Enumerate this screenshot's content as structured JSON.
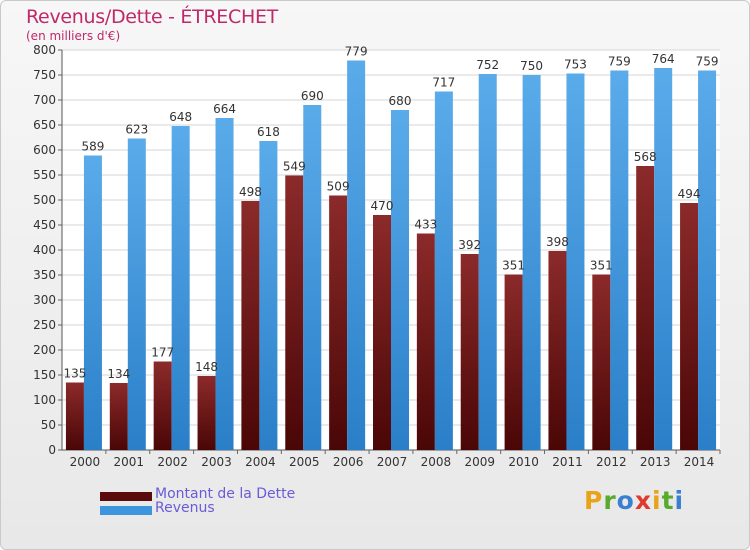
{
  "header": {
    "title": "Revenus/Dette - ÉTRECHET",
    "subtitle": "(en milliers d'€)"
  },
  "chart_data": {
    "type": "bar",
    "title": "Revenus/Dette - ÉTRECHET",
    "ylabel": "(en milliers d'€)",
    "xlabel": "",
    "ylim": [
      0,
      800
    ],
    "ytick_step": 50,
    "grid": true,
    "categories": [
      "2000",
      "2001",
      "2002",
      "2003",
      "2004",
      "2005",
      "2006",
      "2007",
      "2008",
      "2009",
      "2010",
      "2011",
      "2012",
      "2013",
      "2014"
    ],
    "series": [
      {
        "name": "Montant de la Dette",
        "color": "#7a1f1f",
        "values": [
          135,
          134,
          177,
          148,
          498,
          549,
          509,
          470,
          433,
          392,
          351,
          398,
          351,
          568,
          494
        ]
      },
      {
        "name": "Revenus",
        "color": "#3d95dd",
        "values": [
          589,
          623,
          648,
          664,
          618,
          690,
          779,
          680,
          717,
          752,
          750,
          753,
          759,
          764,
          759
        ]
      }
    ],
    "legend_position": "bottom-left"
  },
  "legend": {
    "items": [
      {
        "label": "Montant de la Dette",
        "color": "#5a0c0c"
      },
      {
        "label": "Revenus",
        "color": "#3d95dd"
      }
    ]
  },
  "logo": {
    "letters": [
      "P",
      "r",
      "o",
      "x",
      "i",
      "t",
      "i"
    ],
    "colors": [
      "#e8a319",
      "#5aaa2e",
      "#3b7fd0",
      "#e03a2f",
      "#e8a319",
      "#5aaa2e",
      "#3b7fd0"
    ]
  }
}
